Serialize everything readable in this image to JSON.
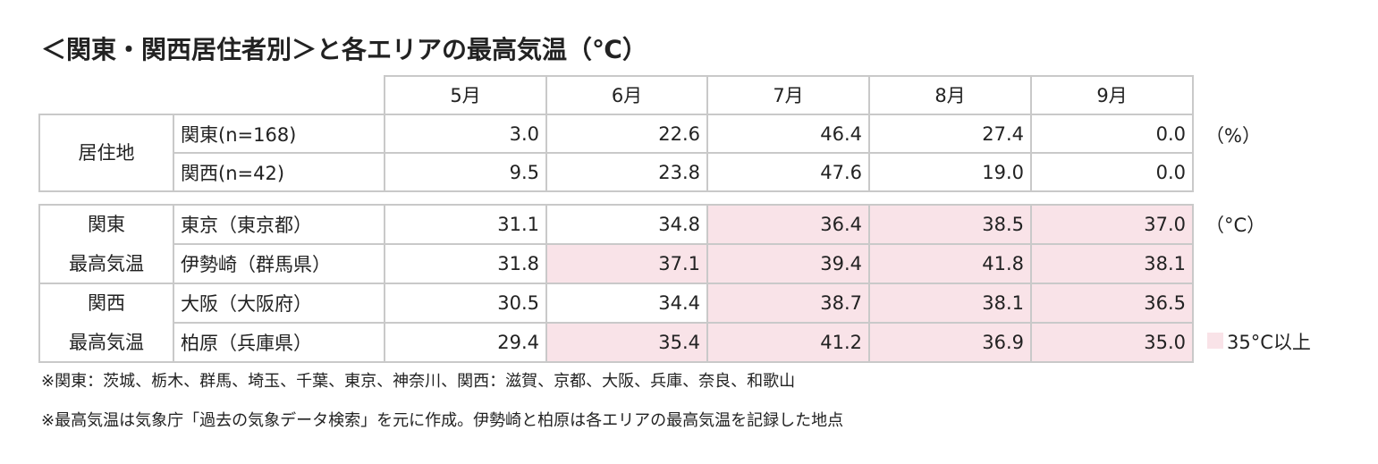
{
  "title": "＜関東・関西居住者別＞と各エリアの最高気温（℃）",
  "header": {
    "months": [
      "5月",
      "6月",
      "7月",
      "8月",
      "9月"
    ]
  },
  "residence": {
    "label": "居住地",
    "unit": "（%）",
    "rows": [
      {
        "name": "関東(n=168)",
        "values": [
          "3.0",
          "22.6",
          "46.4",
          "27.4",
          "0.0"
        ]
      },
      {
        "name": "関西(n=42)",
        "values": [
          "9.5",
          "23.8",
          "47.6",
          "19.0",
          "0.0"
        ]
      }
    ]
  },
  "temperature": {
    "unit": "（°C）",
    "groups": [
      {
        "label_lines": [
          "関東",
          "最高気温"
        ],
        "rows": [
          {
            "name": "東京（東京都）",
            "values": [
              "31.1",
              "34.8",
              "36.4",
              "38.5",
              "37.0"
            ]
          },
          {
            "name": "伊勢崎（群馬県）",
            "values": [
              "31.8",
              "37.1",
              "39.4",
              "41.8",
              "38.1"
            ]
          }
        ]
      },
      {
        "label_lines": [
          "関西",
          "最高気温"
        ],
        "rows": [
          {
            "name": "大阪（大阪府）",
            "values": [
              "30.5",
              "34.4",
              "38.7",
              "38.1",
              "36.5"
            ]
          },
          {
            "name": "柏原（兵庫県）",
            "values": [
              "29.4",
              "35.4",
              "41.2",
              "36.9",
              "35.0"
            ]
          }
        ]
      }
    ]
  },
  "highlight": {
    "min": 35,
    "color": "#f9e3e8",
    "label": "35°C以上"
  },
  "notes": [
    "※関東：茨城、栃木、群馬、埼玉、千葉、東京、神奈川、関西：滋賀、京都、大阪、兵庫、奈良、和歌山",
    "※最高気温は気象庁「過去の気象データ検索」を元に作成。伊勢崎と柏原は各エリアの最高気温を記録した地点"
  ]
}
